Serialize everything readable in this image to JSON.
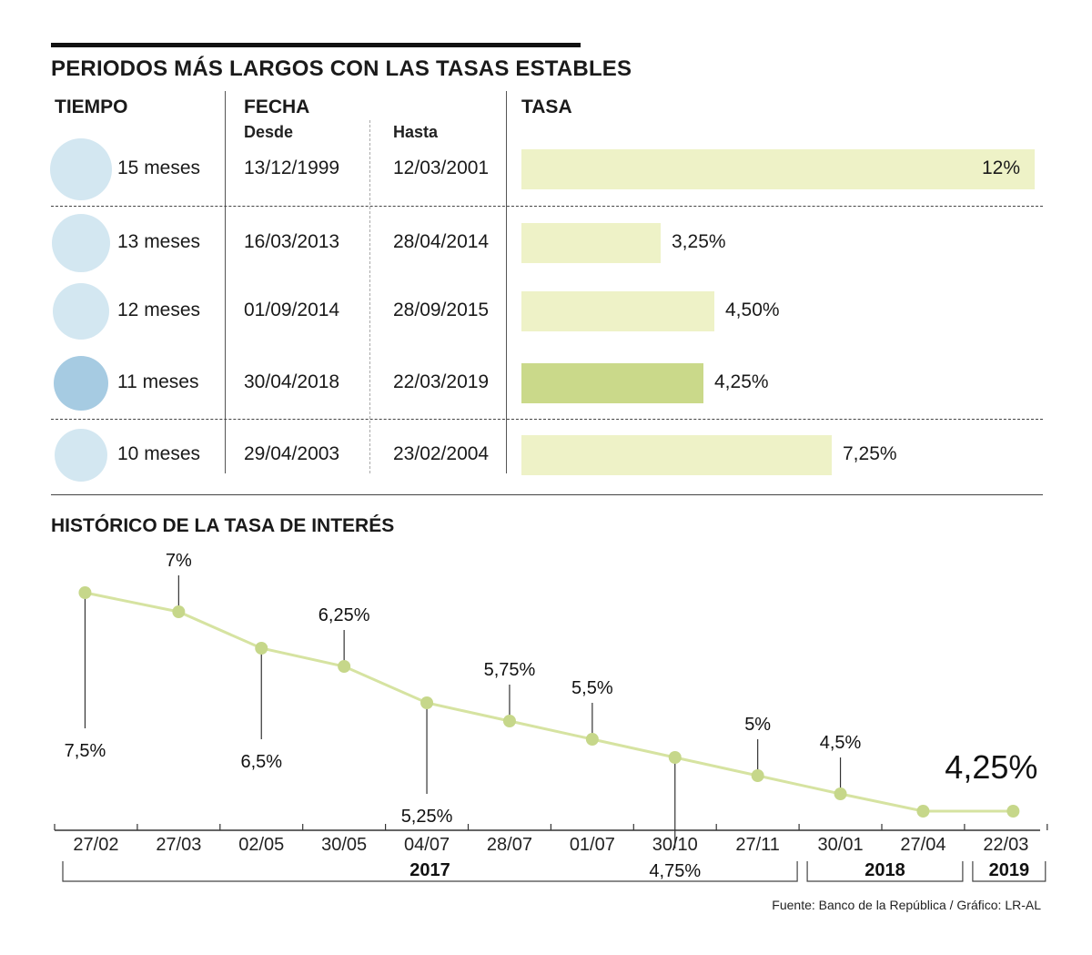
{
  "title": "PERIODOS MÁS LARGOS CON LAS TASAS ESTABLES",
  "columns": {
    "tiempo": "TIEMPO",
    "fecha": "FECHA",
    "desde": "Desde",
    "hasta": "Hasta",
    "tasa": "TASA"
  },
  "rows": [
    {
      "tiempo": "15 meses",
      "desde": "13/12/1999",
      "hasta": "12/03/2001",
      "tasa": 12,
      "tasa_label": "12%",
      "highlight": false
    },
    {
      "tiempo": "13 meses",
      "desde": "16/03/2013",
      "hasta": "28/04/2014",
      "tasa": 3.25,
      "tasa_label": "3,25%",
      "highlight": false
    },
    {
      "tiempo": "12 meses",
      "desde": "01/09/2014",
      "hasta": "28/09/2015",
      "tasa": 4.5,
      "tasa_label": "4,50%",
      "highlight": false
    },
    {
      "tiempo": "11 meses",
      "desde": "30/04/2018",
      "hasta": "22/03/2019",
      "tasa": 4.25,
      "tasa_label": "4,25%",
      "highlight": true
    },
    {
      "tiempo": "10 meses",
      "desde": "29/04/2003",
      "hasta": "23/02/2004",
      "tasa": 7.25,
      "tasa_label": "7,25%",
      "highlight": false
    }
  ],
  "colors": {
    "circle_light": "#d3e7f1",
    "circle_highlight": "#a6cbe2",
    "bar_light": "#eef2c7",
    "bar_highlight": "#cad98a",
    "line": "#d6e3a1",
    "point": "#c6d78a"
  },
  "chart_data": {
    "type": "line",
    "title": "HISTÓRICO DE LA TASA DE INTERÉS",
    "x": [
      "27/02",
      "27/03",
      "02/05",
      "30/05",
      "04/07",
      "28/07",
      "01/07",
      "30/10",
      "27/11",
      "30/01",
      "27/04",
      "22/03"
    ],
    "values": [
      7.5,
      7,
      6.5,
      6.25,
      5.25,
      5.75,
      5.5,
      4.75,
      5,
      4.5,
      4.25,
      4.25
    ],
    "labels": [
      "7,5%",
      "7%",
      "6,5%",
      "6,25%",
      "5,25%",
      "5,75%",
      "5,5%",
      "4,75%",
      "5%",
      "4,5%",
      "",
      "4,25%"
    ],
    "years": [
      {
        "label": "2017",
        "from": 0,
        "to": 8
      },
      {
        "label": "2018",
        "from": 9,
        "to": 10
      },
      {
        "label": "2019",
        "from": 11,
        "to": 11
      }
    ],
    "xlabel": "",
    "ylabel": "",
    "grid": false,
    "legend": "none"
  },
  "source": "Fuente: Banco de la República / Gráfico: LR-AL"
}
